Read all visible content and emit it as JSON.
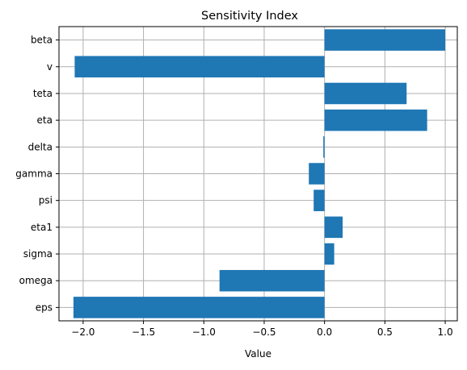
{
  "chart_data": {
    "type": "bar",
    "orientation": "horizontal",
    "title": "Sensitivity Index",
    "xlabel": "Value",
    "ylabel": "",
    "categories": [
      "beta",
      "v",
      "teta",
      "eta",
      "delta",
      "gamma",
      "psi",
      "eta1",
      "sigma",
      "omega",
      "eps"
    ],
    "values": [
      1.0,
      -2.07,
      0.68,
      0.85,
      -0.01,
      -0.13,
      -0.09,
      0.15,
      0.08,
      -0.87,
      -2.08
    ],
    "xlim": [
      -2.2,
      1.1
    ],
    "xticks": [
      -2.0,
      -1.5,
      -1.0,
      -0.5,
      0.0,
      0.5,
      1.0
    ],
    "xtick_labels": [
      "−2.0",
      "−1.5",
      "−1.0",
      "−0.5",
      "0.0",
      "0.5",
      "1.0"
    ],
    "grid": true,
    "bar_color": "#1f77b4",
    "grid_color": "#b0b0b0",
    "axis_color": "#000000"
  }
}
